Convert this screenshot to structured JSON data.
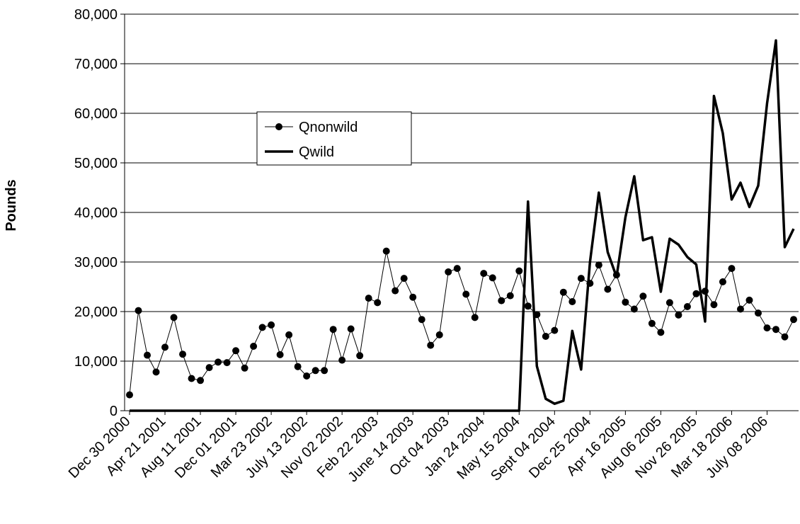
{
  "chart_data": {
    "type": "line",
    "title": "",
    "xlabel": "",
    "ylabel": "Pounds",
    "ylim": [
      0,
      80000
    ],
    "yticks": [
      "0",
      "10,000",
      "20,000",
      "30,000",
      "40,000",
      "50,000",
      "60,000",
      "70,000",
      "80,000"
    ],
    "yticks_values": [
      0,
      10000,
      20000,
      30000,
      40000,
      50000,
      60000,
      70000,
      80000
    ],
    "grid": true,
    "legend": "upper-left inside plot",
    "x_labels": [
      {
        "index": 0,
        "label": "Dec 30 2000"
      },
      {
        "index": 4,
        "label": "Apr 21 2001"
      },
      {
        "index": 8,
        "label": "Aug 11 2001"
      },
      {
        "index": 12,
        "label": "Dec 01 2001"
      },
      {
        "index": 16,
        "label": "Mar 23 2002"
      },
      {
        "index": 20,
        "label": "July 13 2002"
      },
      {
        "index": 24,
        "label": "Nov 02 2002"
      },
      {
        "index": 28,
        "label": "Feb 22 2003"
      },
      {
        "index": 32,
        "label": "June 14 2003"
      },
      {
        "index": 36,
        "label": "Oct 04 2003"
      },
      {
        "index": 40,
        "label": "Jan 24 2004"
      },
      {
        "index": 44,
        "label": "May 15 2004"
      },
      {
        "index": 48,
        "label": "Sept 04 2004"
      },
      {
        "index": 52,
        "label": "Dec 25 2004"
      },
      {
        "index": 56,
        "label": "Apr 16 2005"
      },
      {
        "index": 60,
        "label": "Aug 06 2005"
      },
      {
        "index": 64,
        "label": "Nov 26 2005"
      },
      {
        "index": 68,
        "label": "Mar 18 2006"
      },
      {
        "index": 72,
        "label": "July 08 2006"
      }
    ],
    "series": [
      {
        "name": "Qnonwild",
        "style": "line-with-dots",
        "color": "#000000",
        "values": [
          3200,
          20200,
          11200,
          7800,
          12800,
          18800,
          11400,
          6500,
          6100,
          8700,
          9800,
          9700,
          12100,
          8600,
          13000,
          16800,
          17300,
          11300,
          15300,
          8900,
          7000,
          8100,
          8100,
          16400,
          10200,
          16500,
          11100,
          22700,
          21800,
          32200,
          24200,
          26700,
          22900,
          18400,
          13200,
          15300,
          28000,
          28700,
          23500,
          18800,
          27700,
          26800,
          22200,
          23200,
          28200,
          21100,
          19400,
          15000,
          16200,
          23900,
          22000,
          26700,
          25700,
          29400,
          24500,
          27400,
          21900,
          20500,
          23100,
          17600,
          15800,
          21800,
          19300,
          21000,
          23600,
          24100,
          21400,
          26000,
          28700,
          20500,
          22300,
          19700,
          16700,
          16400,
          14900,
          18400
        ]
      },
      {
        "name": "Qwild",
        "style": "thick-line",
        "color": "#000000",
        "values": [
          0,
          0,
          0,
          0,
          0,
          0,
          0,
          0,
          0,
          0,
          0,
          0,
          0,
          0,
          0,
          0,
          0,
          0,
          0,
          0,
          0,
          0,
          0,
          0,
          0,
          0,
          0,
          0,
          0,
          0,
          0,
          0,
          0,
          0,
          0,
          0,
          0,
          0,
          0,
          0,
          0,
          0,
          0,
          0,
          0,
          42200,
          9000,
          2400,
          1400,
          2000,
          16100,
          8300,
          30000,
          44000,
          32000,
          27000,
          39000,
          47300,
          34400,
          35000,
          24000,
          34700,
          33500,
          31000,
          29500,
          18000,
          63500,
          56000,
          42600,
          46000,
          41100,
          45400,
          62000,
          74700,
          33000,
          36700
        ]
      }
    ]
  }
}
